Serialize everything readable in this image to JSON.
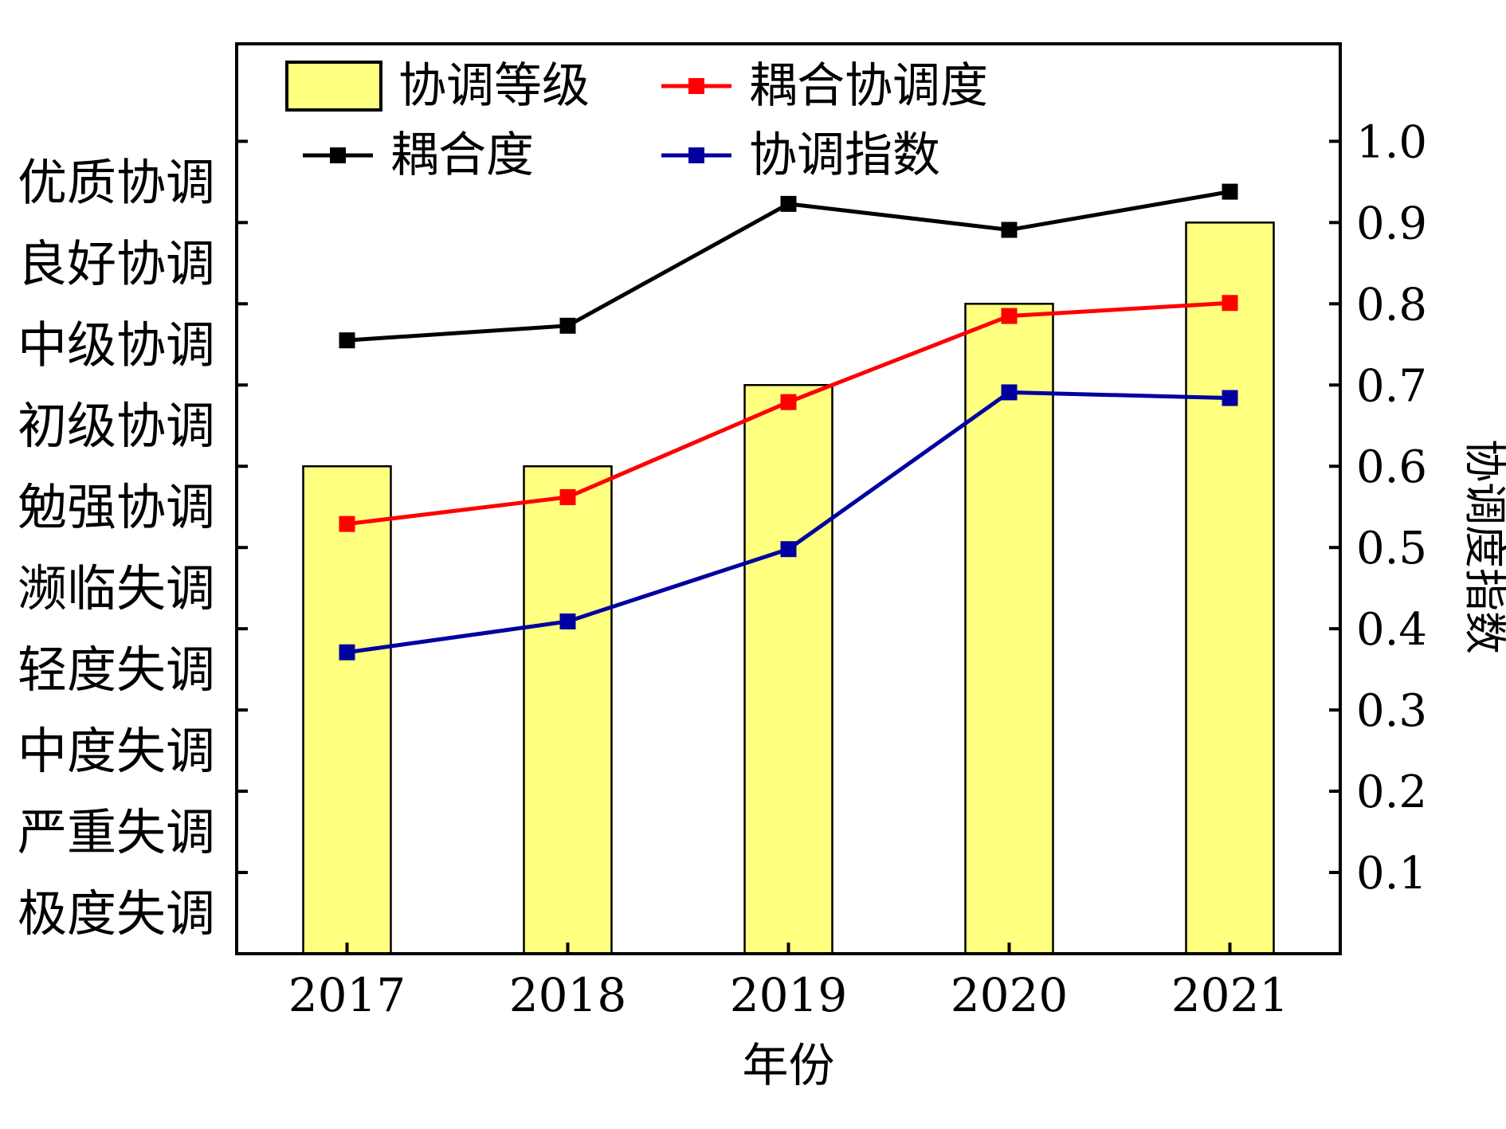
{
  "chart_data": {
    "type": "bar+line",
    "categories": [
      "2017",
      "2018",
      "2019",
      "2020",
      "2021"
    ],
    "xlabel": "年份",
    "ylabel_right": "协调度指数",
    "right_ticks": [
      "0.1",
      "0.2",
      "0.3",
      "0.4",
      "0.5",
      "0.6",
      "0.7",
      "0.8",
      "0.9",
      "1.0"
    ],
    "ylim": [
      0,
      1.12
    ],
    "left_levels": [
      "极度失调",
      "严重失调",
      "中度失调",
      "轻度失调",
      "濒临失调",
      "勉强协调",
      "初级协调",
      "中级协调",
      "良好协调",
      "优质协调"
    ],
    "bar_series": {
      "name": "协调等级",
      "values": [
        0.6,
        0.6,
        0.7,
        0.8,
        0.9
      ],
      "color": "#ffff80"
    },
    "series": [
      {
        "name": "耦合度",
        "values": [
          0.755,
          0.773,
          0.923,
          0.891,
          0.938
        ],
        "color": "#000000"
      },
      {
        "name": "耦合协调度",
        "values": [
          0.529,
          0.562,
          0.679,
          0.785,
          0.801
        ],
        "color": "#ff0000"
      },
      {
        "name": "协调指数",
        "values": [
          0.371,
          0.409,
          0.498,
          0.691,
          0.684
        ],
        "color": "#0000a0"
      }
    ],
    "legend": [
      {
        "label": "协调等级",
        "kind": "bar",
        "color": "#ffff80"
      },
      {
        "label": "耦合协调度",
        "kind": "line",
        "color": "#ff0000"
      },
      {
        "label": "耦合度",
        "kind": "line",
        "color": "#000000"
      },
      {
        "label": "协调指数",
        "kind": "line",
        "color": "#0000a0"
      }
    ],
    "legend_position": "top-left inside"
  }
}
